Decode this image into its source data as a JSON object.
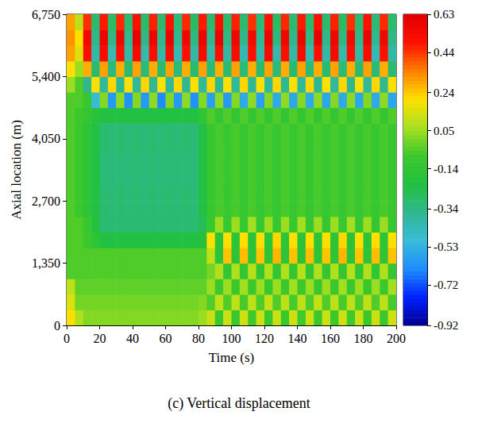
{
  "chart_data": {
    "type": "heatmap",
    "caption": "(c) Vertical displacement",
    "x_label": "Time (s)",
    "y_label": "Axial location (m)",
    "xlim": [
      0,
      200
    ],
    "xticks": [
      0,
      20,
      40,
      60,
      80,
      100,
      120,
      140,
      160,
      180,
      200
    ],
    "ylim": [
      0,
      6750
    ],
    "yticks": [
      0,
      1350,
      2700,
      4050,
      5400,
      6750
    ],
    "x_bins": [
      0,
      5,
      10,
      15,
      20,
      25,
      30,
      35,
      40,
      45,
      50,
      55,
      60,
      65,
      70,
      75,
      80,
      85,
      90,
      95,
      100,
      105,
      110,
      115,
      120,
      125,
      130,
      135,
      140,
      145,
      150,
      155,
      160,
      165,
      170,
      175,
      180,
      185,
      190,
      195,
      200
    ],
    "y_bins": [
      0,
      337.5,
      675,
      1012.5,
      1350,
      1687.5,
      2025,
      2362.5,
      2700,
      3037.5,
      3375,
      3712.5,
      4050,
      4387.5,
      4725,
      5062.5,
      5400,
      5737.5,
      6075,
      6412.5,
      6750
    ],
    "z": [
      [
        0.2,
        0.08,
        0.02,
        0.02,
        0.02,
        0.02,
        0.02,
        0.02,
        0.02,
        0.02,
        0.02,
        0.02,
        0.02,
        0.02,
        0.02,
        0.02,
        0.05,
        0.12,
        -0.08,
        0.12,
        -0.08,
        0.13,
        -0.07,
        0.12,
        -0.08,
        0.12,
        -0.08,
        0.13,
        -0.07,
        0.12,
        -0.08,
        0.12,
        -0.08,
        0.13,
        -0.07,
        0.12,
        -0.08,
        0.12,
        -0.08,
        0.13
      ],
      [
        0.15,
        0,
        0,
        0,
        0,
        0,
        0,
        0,
        0,
        0,
        0,
        0,
        0,
        0,
        0,
        0,
        0.02,
        -0.05,
        0.1,
        -0.05,
        0.1,
        -0.06,
        0.1,
        -0.05,
        0.11,
        -0.05,
        0.1,
        -0.06,
        0.1,
        -0.05,
        0.11,
        -0.05,
        0.1,
        -0.06,
        0.1,
        -0.05,
        0.11,
        -0.05,
        0.1,
        -0.06
      ],
      [
        0.1,
        -0.03,
        -0.03,
        -0.03,
        -0.03,
        -0.03,
        -0.03,
        -0.03,
        -0.03,
        -0.03,
        -0.03,
        -0.03,
        -0.03,
        -0.03,
        -0.03,
        -0.03,
        -0.03,
        0.05,
        -0.08,
        0.05,
        -0.08,
        0.06,
        -0.08,
        0.05,
        -0.09,
        0.05,
        -0.08,
        0.06,
        -0.08,
        0.05,
        -0.09,
        0.05,
        -0.08,
        0.06,
        -0.08,
        0.05,
        -0.09,
        0.05,
        -0.08,
        0.06
      ],
      [
        -0.05,
        -0.05,
        -0.05,
        -0.05,
        -0.05,
        -0.05,
        -0.05,
        -0.05,
        -0.05,
        -0.05,
        -0.05,
        -0.05,
        -0.05,
        -0.05,
        -0.05,
        -0.05,
        -0.05,
        0,
        0.08,
        -0.12,
        0.08,
        -0.12,
        0.09,
        -0.12,
        0.08,
        -0.13,
        0.08,
        -0.12,
        0.09,
        -0.12,
        0.08,
        -0.13,
        0.08,
        -0.12,
        0.09,
        -0.12,
        0.08,
        -0.13,
        0.08,
        -0.12
      ],
      [
        -0.05,
        -0.05,
        -0.05,
        -0.05,
        -0.05,
        -0.05,
        -0.05,
        -0.05,
        -0.05,
        -0.05,
        -0.05,
        -0.05,
        -0.05,
        -0.05,
        -0.05,
        -0.05,
        -0.05,
        0.1,
        -0.15,
        0.25,
        -0.15,
        0.26,
        -0.16,
        0.25,
        -0.15,
        0.27,
        -0.15,
        0.25,
        -0.16,
        0.26,
        -0.15,
        0.25,
        -0.15,
        0.27,
        -0.16,
        0.25,
        -0.15,
        0.26,
        -0.15,
        0.25
      ],
      [
        -0.05,
        -0.05,
        -0.08,
        -0.15,
        -0.22,
        -0.22,
        -0.22,
        -0.22,
        -0.22,
        -0.22,
        -0.22,
        -0.22,
        -0.22,
        -0.22,
        -0.22,
        -0.22,
        -0.2,
        0.2,
        -0.15,
        0.2,
        -0.15,
        0.21,
        -0.16,
        0.2,
        -0.15,
        0.22,
        -0.15,
        0.2,
        -0.16,
        0.21,
        -0.15,
        0.2,
        -0.15,
        0.22,
        -0.16,
        0.2,
        -0.15,
        0.21,
        -0.15,
        0.2
      ],
      [
        -0.05,
        -0.05,
        -0.1,
        -0.2,
        -0.3,
        -0.3,
        -0.3,
        -0.3,
        -0.3,
        -0.3,
        -0.3,
        -0.3,
        -0.3,
        -0.3,
        -0.3,
        -0.3,
        -0.25,
        -0.1,
        0.05,
        -0.1,
        0.05,
        -0.1,
        0.06,
        -0.1,
        0.05,
        -0.11,
        0.05,
        -0.1,
        0.06,
        -0.1,
        0.05,
        -0.11,
        0.05,
        -0.1,
        0.06,
        -0.1,
        0.05,
        -0.11,
        0.05,
        -0.1
      ],
      [
        -0.05,
        -0.08,
        -0.15,
        -0.22,
        -0.3,
        -0.31,
        -0.3,
        -0.31,
        -0.3,
        -0.31,
        -0.3,
        -0.31,
        -0.3,
        -0.31,
        -0.3,
        -0.31,
        -0.22,
        -0.1,
        -0.06,
        -0.1,
        -0.06,
        -0.1,
        -0.06,
        -0.1,
        -0.06,
        -0.1,
        -0.06,
        -0.1,
        -0.06,
        -0.1,
        -0.06,
        -0.1,
        -0.06,
        -0.1,
        -0.06,
        -0.1,
        -0.06,
        -0.1,
        -0.06,
        -0.1
      ],
      [
        -0.05,
        -0.08,
        -0.15,
        -0.22,
        -0.3,
        -0.31,
        -0.3,
        -0.31,
        -0.3,
        -0.31,
        -0.3,
        -0.31,
        -0.3,
        -0.31,
        -0.3,
        -0.31,
        -0.22,
        -0.1,
        -0.06,
        -0.1,
        -0.06,
        -0.1,
        -0.06,
        -0.1,
        -0.06,
        -0.1,
        -0.06,
        -0.1,
        -0.06,
        -0.1,
        -0.06,
        -0.1,
        -0.06,
        -0.1,
        -0.06,
        -0.1,
        -0.06,
        -0.1,
        -0.06,
        -0.1
      ],
      [
        -0.05,
        -0.08,
        -0.15,
        -0.22,
        -0.31,
        -0.32,
        -0.31,
        -0.32,
        -0.31,
        -0.32,
        -0.31,
        -0.32,
        -0.31,
        -0.32,
        -0.31,
        -0.32,
        -0.22,
        -0.1,
        -0.06,
        -0.1,
        -0.06,
        -0.1,
        -0.06,
        -0.1,
        -0.06,
        -0.1,
        -0.06,
        -0.1,
        -0.06,
        -0.1,
        -0.06,
        -0.1,
        -0.06,
        -0.1,
        -0.06,
        -0.1,
        -0.06,
        -0.1,
        -0.06,
        -0.1
      ],
      [
        -0.05,
        -0.08,
        -0.15,
        -0.22,
        -0.31,
        -0.32,
        -0.31,
        -0.32,
        -0.31,
        -0.32,
        -0.31,
        -0.32,
        -0.31,
        -0.32,
        -0.31,
        -0.32,
        -0.22,
        -0.1,
        -0.06,
        -0.1,
        -0.06,
        -0.1,
        -0.06,
        -0.1,
        -0.06,
        -0.1,
        -0.06,
        -0.1,
        -0.06,
        -0.1,
        -0.06,
        -0.1,
        -0.06,
        -0.1,
        -0.06,
        -0.1,
        -0.06,
        -0.1,
        -0.06,
        -0.1
      ],
      [
        -0.05,
        -0.08,
        -0.15,
        -0.22,
        -0.3,
        -0.31,
        -0.3,
        -0.31,
        -0.3,
        -0.31,
        -0.3,
        -0.31,
        -0.3,
        -0.31,
        -0.3,
        -0.31,
        -0.22,
        -0.1,
        -0.06,
        -0.1,
        -0.06,
        -0.1,
        -0.06,
        -0.1,
        -0.06,
        -0.1,
        -0.06,
        -0.1,
        -0.06,
        -0.1,
        -0.06,
        -0.1,
        -0.06,
        -0.1,
        -0.06,
        -0.1,
        -0.06,
        -0.1,
        -0.06,
        -0.1
      ],
      [
        -0.05,
        -0.08,
        -0.15,
        -0.22,
        -0.3,
        -0.31,
        -0.3,
        -0.31,
        -0.3,
        -0.31,
        -0.3,
        -0.31,
        -0.3,
        -0.31,
        -0.3,
        -0.31,
        -0.22,
        -0.1,
        -0.06,
        -0.1,
        -0.06,
        -0.1,
        -0.06,
        -0.1,
        -0.06,
        -0.1,
        -0.06,
        -0.1,
        -0.06,
        -0.1,
        -0.06,
        -0.1,
        -0.06,
        -0.1,
        -0.06,
        -0.1,
        -0.06,
        -0.1,
        -0.06,
        -0.1
      ],
      [
        -0.05,
        -0.08,
        -0.12,
        -0.18,
        -0.22,
        -0.22,
        -0.22,
        -0.22,
        -0.22,
        -0.22,
        -0.22,
        -0.22,
        -0.22,
        -0.22,
        -0.22,
        -0.22,
        -0.15,
        -0.05,
        -0.12,
        -0.05,
        -0.12,
        -0.05,
        -0.12,
        -0.05,
        -0.12,
        -0.05,
        -0.12,
        -0.05,
        -0.12,
        -0.05,
        -0.12,
        -0.05,
        -0.12,
        -0.05,
        -0.12,
        -0.05,
        -0.12,
        -0.05,
        -0.12,
        -0.05
      ],
      [
        -0.05,
        -0.05,
        -0.1,
        -0.5,
        0.02,
        -0.6,
        0.03,
        -0.62,
        0.02,
        -0.6,
        0.03,
        -0.64,
        0.02,
        -0.6,
        0.03,
        -0.62,
        0.02,
        -0.58,
        0.03,
        -0.6,
        0.02,
        -0.55,
        0.03,
        -0.58,
        0.02,
        -0.55,
        0.03,
        -0.56,
        0.02,
        -0.55,
        0.03,
        -0.56,
        0.02,
        -0.55,
        0.03,
        -0.56,
        0.02,
        -0.55,
        0.03,
        -0.56
      ],
      [
        0.05,
        -0.05,
        -0.35,
        0.2,
        -0.38,
        0.22,
        -0.36,
        0.2,
        -0.38,
        0.22,
        -0.36,
        0.2,
        -0.38,
        0.22,
        -0.36,
        0.2,
        -0.38,
        0.22,
        -0.36,
        0.2,
        -0.38,
        0.22,
        -0.36,
        0.2,
        -0.38,
        0.22,
        -0.36,
        0.2,
        -0.38,
        0.22,
        -0.36,
        0.2,
        -0.38,
        0.22,
        -0.36,
        0.2,
        -0.38,
        0.22,
        -0.36,
        0.2
      ],
      [
        0.2,
        0.05,
        0.28,
        -0.3,
        0.3,
        -0.32,
        0.28,
        -0.3,
        0.3,
        -0.32,
        0.28,
        -0.3,
        0.3,
        -0.32,
        0.28,
        -0.3,
        0.3,
        -0.32,
        0.28,
        -0.3,
        0.3,
        -0.32,
        0.28,
        -0.3,
        0.3,
        -0.32,
        0.28,
        -0.3,
        0.3,
        -0.32,
        0.28,
        -0.3,
        0.3,
        -0.32,
        0.28,
        -0.3,
        0.3,
        -0.32,
        0.28,
        -0.3
      ],
      [
        0.3,
        0.15,
        0.5,
        -0.4,
        0.52,
        -0.42,
        0.5,
        -0.4,
        0.53,
        -0.41,
        0.5,
        -0.4,
        0.52,
        -0.42,
        0.5,
        -0.4,
        0.53,
        -0.41,
        0.5,
        -0.4,
        0.52,
        -0.42,
        0.5,
        -0.4,
        0.53,
        -0.41,
        0.5,
        -0.4,
        0.52,
        -0.42,
        0.5,
        -0.4,
        0.53,
        -0.41,
        0.5,
        -0.4,
        0.52,
        -0.42,
        0.5,
        -0.4
      ],
      [
        0.32,
        0.2,
        0.55,
        -0.35,
        0.58,
        -0.33,
        0.56,
        -0.36,
        0.6,
        -0.34,
        0.57,
        -0.35,
        0.59,
        -0.36,
        0.56,
        -0.33,
        0.58,
        -0.35,
        0.6,
        -0.34,
        0.57,
        -0.35,
        0.55,
        -0.36,
        0.59,
        -0.33,
        0.56,
        -0.35,
        0.58,
        -0.34,
        0.6,
        -0.35,
        0.57,
        -0.33,
        0.55,
        -0.35,
        0.59,
        -0.36,
        0.56,
        -0.34
      ],
      [
        0.3,
        0.1,
        0.45,
        -0.3,
        0.48,
        -0.28,
        0.46,
        -0.3,
        0.5,
        -0.29,
        0.47,
        -0.3,
        0.49,
        -0.31,
        0.46,
        -0.28,
        0.48,
        -0.3,
        0.5,
        -0.29,
        0.47,
        -0.3,
        0.45,
        -0.31,
        0.49,
        -0.28,
        0.46,
        -0.3,
        0.48,
        -0.29,
        0.5,
        -0.3,
        0.47,
        -0.28,
        0.45,
        -0.3,
        0.49,
        -0.31,
        0.46,
        -0.29
      ]
    ],
    "colorbar_range": [
      -0.92,
      0.63
    ],
    "colorbar_ticks": [
      -0.92,
      -0.72,
      -0.53,
      -0.34,
      -0.14,
      0.05,
      0.24,
      0.44,
      0.63
    ]
  }
}
